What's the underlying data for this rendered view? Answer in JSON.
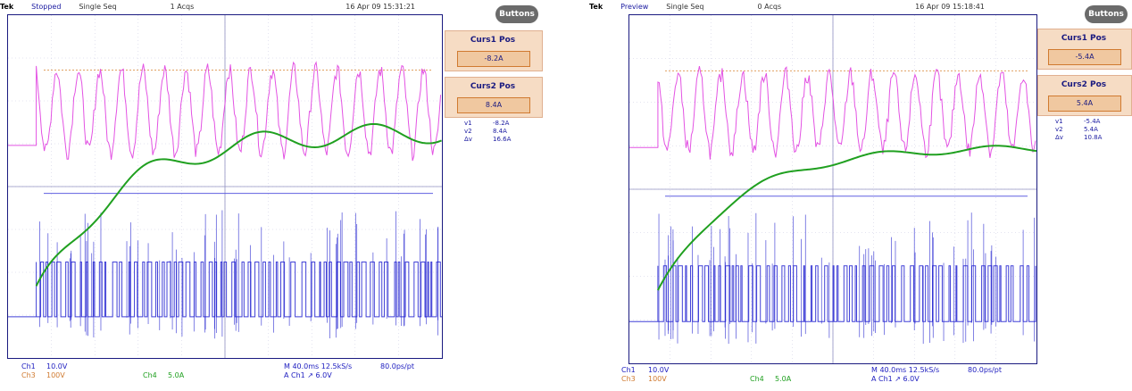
{
  "chart_data": [
    {
      "type": "line",
      "title": "",
      "xlabel": "",
      "ylabel": "",
      "header": {
        "brand": "Tek",
        "state": "Stopped",
        "mode": "Single Seq",
        "acqs": "1 Acqs",
        "datetime": "16 Apr 09 15:31:21"
      },
      "buttons_label": "Buttons",
      "cursor1": {
        "label": "Curs1 Pos",
        "value": "-8.2A"
      },
      "cursor2": {
        "label": "Curs2 Pos",
        "value": "8.4A"
      },
      "cursor_readout": [
        {
          "name": "v1",
          "value": "-8.2A"
        },
        {
          "name": "v2",
          "value": "8.4A"
        },
        {
          "name": "Δv",
          "value": "16.6A"
        }
      ],
      "channel_settings": {
        "ch1_label": "Ch1",
        "ch1_scale": "10.0V",
        "ch3_label": "Ch3",
        "ch3_scale": "100V",
        "ch4_label": "Ch4",
        "ch4_scale": "5.0A",
        "timebase": "M 40.0ms 12.5kS/s",
        "record": "80.0ps/pt",
        "trigger": "A Ch1 ↗ 6.0V"
      },
      "series": [
        {
          "color": "#2020d0",
          "style": "pwm",
          "plateau_level": 1.0,
          "start_x": 0.065
        },
        {
          "color": "#e040e0",
          "style": "ringing",
          "level_initial": 0.72,
          "amplitude": 0.12
        },
        {
          "color": "#20a020",
          "style": "ramp",
          "start_level": 0.18,
          "settle_level": 0.66,
          "wobble": 0.03
        }
      ]
    },
    {
      "type": "line",
      "title": "",
      "xlabel": "",
      "ylabel": "",
      "header": {
        "brand": "Tek",
        "state": "Preview",
        "mode": "Single Seq",
        "acqs": "0 Acqs",
        "datetime": "16 Apr 09 15:18:41"
      },
      "buttons_label": "Buttons",
      "cursor1": {
        "label": "Curs1 Pos",
        "value": "-5.4A"
      },
      "cursor2": {
        "label": "Curs2 Pos",
        "value": "5.4A"
      },
      "cursor_readout": [
        {
          "name": "v1",
          "value": "-5.4A"
        },
        {
          "name": "v2",
          "value": "5.4A"
        },
        {
          "name": "Δv",
          "value": "10.8A"
        }
      ],
      "channel_settings": {
        "ch1_label": "Ch1",
        "ch1_scale": "10.0V",
        "ch3_label": "Ch3",
        "ch3_scale": "100V",
        "ch4_label": "Ch4",
        "ch4_scale": "5.0A",
        "timebase": "M 40.0ms 12.5kS/s",
        "record": "80.0ps/pt",
        "trigger": "A Ch1 ↗ 6.0V"
      },
      "series": [
        {
          "color": "#2020d0",
          "style": "pwm",
          "plateau_level": 1.0,
          "start_x": 0.07
        },
        {
          "color": "#e040e0",
          "style": "ringing",
          "level_initial": 0.72,
          "amplitude": 0.11
        },
        {
          "color": "#20a020",
          "style": "ramp",
          "start_level": 0.2,
          "settle_level": 0.62,
          "wobble": 0.01
        }
      ]
    }
  ]
}
